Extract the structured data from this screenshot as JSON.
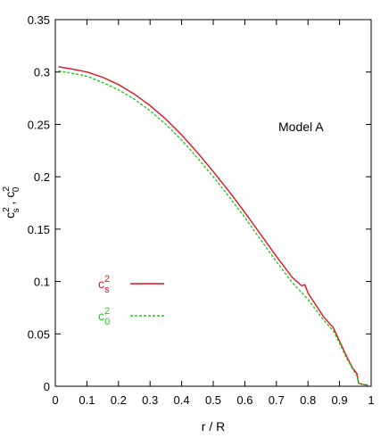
{
  "chart_data": {
    "type": "line",
    "title": "",
    "xlabel": "r / R",
    "ylabel_parts": {
      "c": "c",
      "sup1": "2",
      "sub1": "s",
      "sep": " ,  ",
      "sup2": "2",
      "sub2": "0"
    },
    "annotation": "Model A",
    "xlim": [
      0,
      1
    ],
    "ylim": [
      0,
      0.35
    ],
    "x_ticks": [
      "0",
      "0.1",
      "0.2",
      "0.3",
      "0.4",
      "0.5",
      "0.6",
      "0.7",
      "0.8",
      "0.9",
      "1"
    ],
    "y_ticks": [
      "0",
      "0.05",
      "0.1",
      "0.15",
      "0.2",
      "0.25",
      "0.3",
      "0.35"
    ],
    "grid": false,
    "legend_position": "left-middle",
    "series": [
      {
        "legend_base": "c",
        "legend_sup": "2",
        "legend_sub": "s",
        "color": "#e0141e",
        "style": "solid",
        "x": [
          0.01,
          0.05,
          0.1,
          0.15,
          0.2,
          0.25,
          0.3,
          0.35,
          0.4,
          0.45,
          0.5,
          0.55,
          0.6,
          0.65,
          0.7,
          0.75,
          0.78,
          0.79,
          0.8,
          0.85,
          0.88,
          0.9,
          0.92,
          0.94,
          0.955,
          0.96,
          0.97,
          0.99
        ],
        "y": [
          0.305,
          0.303,
          0.3,
          0.295,
          0.288,
          0.279,
          0.268,
          0.255,
          0.24,
          0.223,
          0.205,
          0.186,
          0.166,
          0.145,
          0.124,
          0.104,
          0.096,
          0.097,
          0.089,
          0.066,
          0.056,
          0.043,
          0.03,
          0.018,
          0.012,
          0.003,
          0.002,
          0.001
        ]
      },
      {
        "legend_base": "c",
        "legend_sup": "2",
        "legend_sub": "0",
        "color": "#22c822",
        "style": "dashed",
        "x": [
          0.01,
          0.05,
          0.1,
          0.15,
          0.2,
          0.25,
          0.3,
          0.35,
          0.4,
          0.45,
          0.5,
          0.55,
          0.6,
          0.65,
          0.7,
          0.75,
          0.8,
          0.85,
          0.88,
          0.9,
          0.92,
          0.94,
          0.955,
          0.96,
          0.97,
          0.99
        ],
        "y": [
          0.301,
          0.299,
          0.296,
          0.29,
          0.283,
          0.274,
          0.263,
          0.25,
          0.235,
          0.218,
          0.2,
          0.181,
          0.161,
          0.14,
          0.119,
          0.099,
          0.083,
          0.063,
          0.053,
          0.041,
          0.028,
          0.017,
          0.01,
          0.003,
          0.002,
          0.001
        ]
      }
    ]
  }
}
